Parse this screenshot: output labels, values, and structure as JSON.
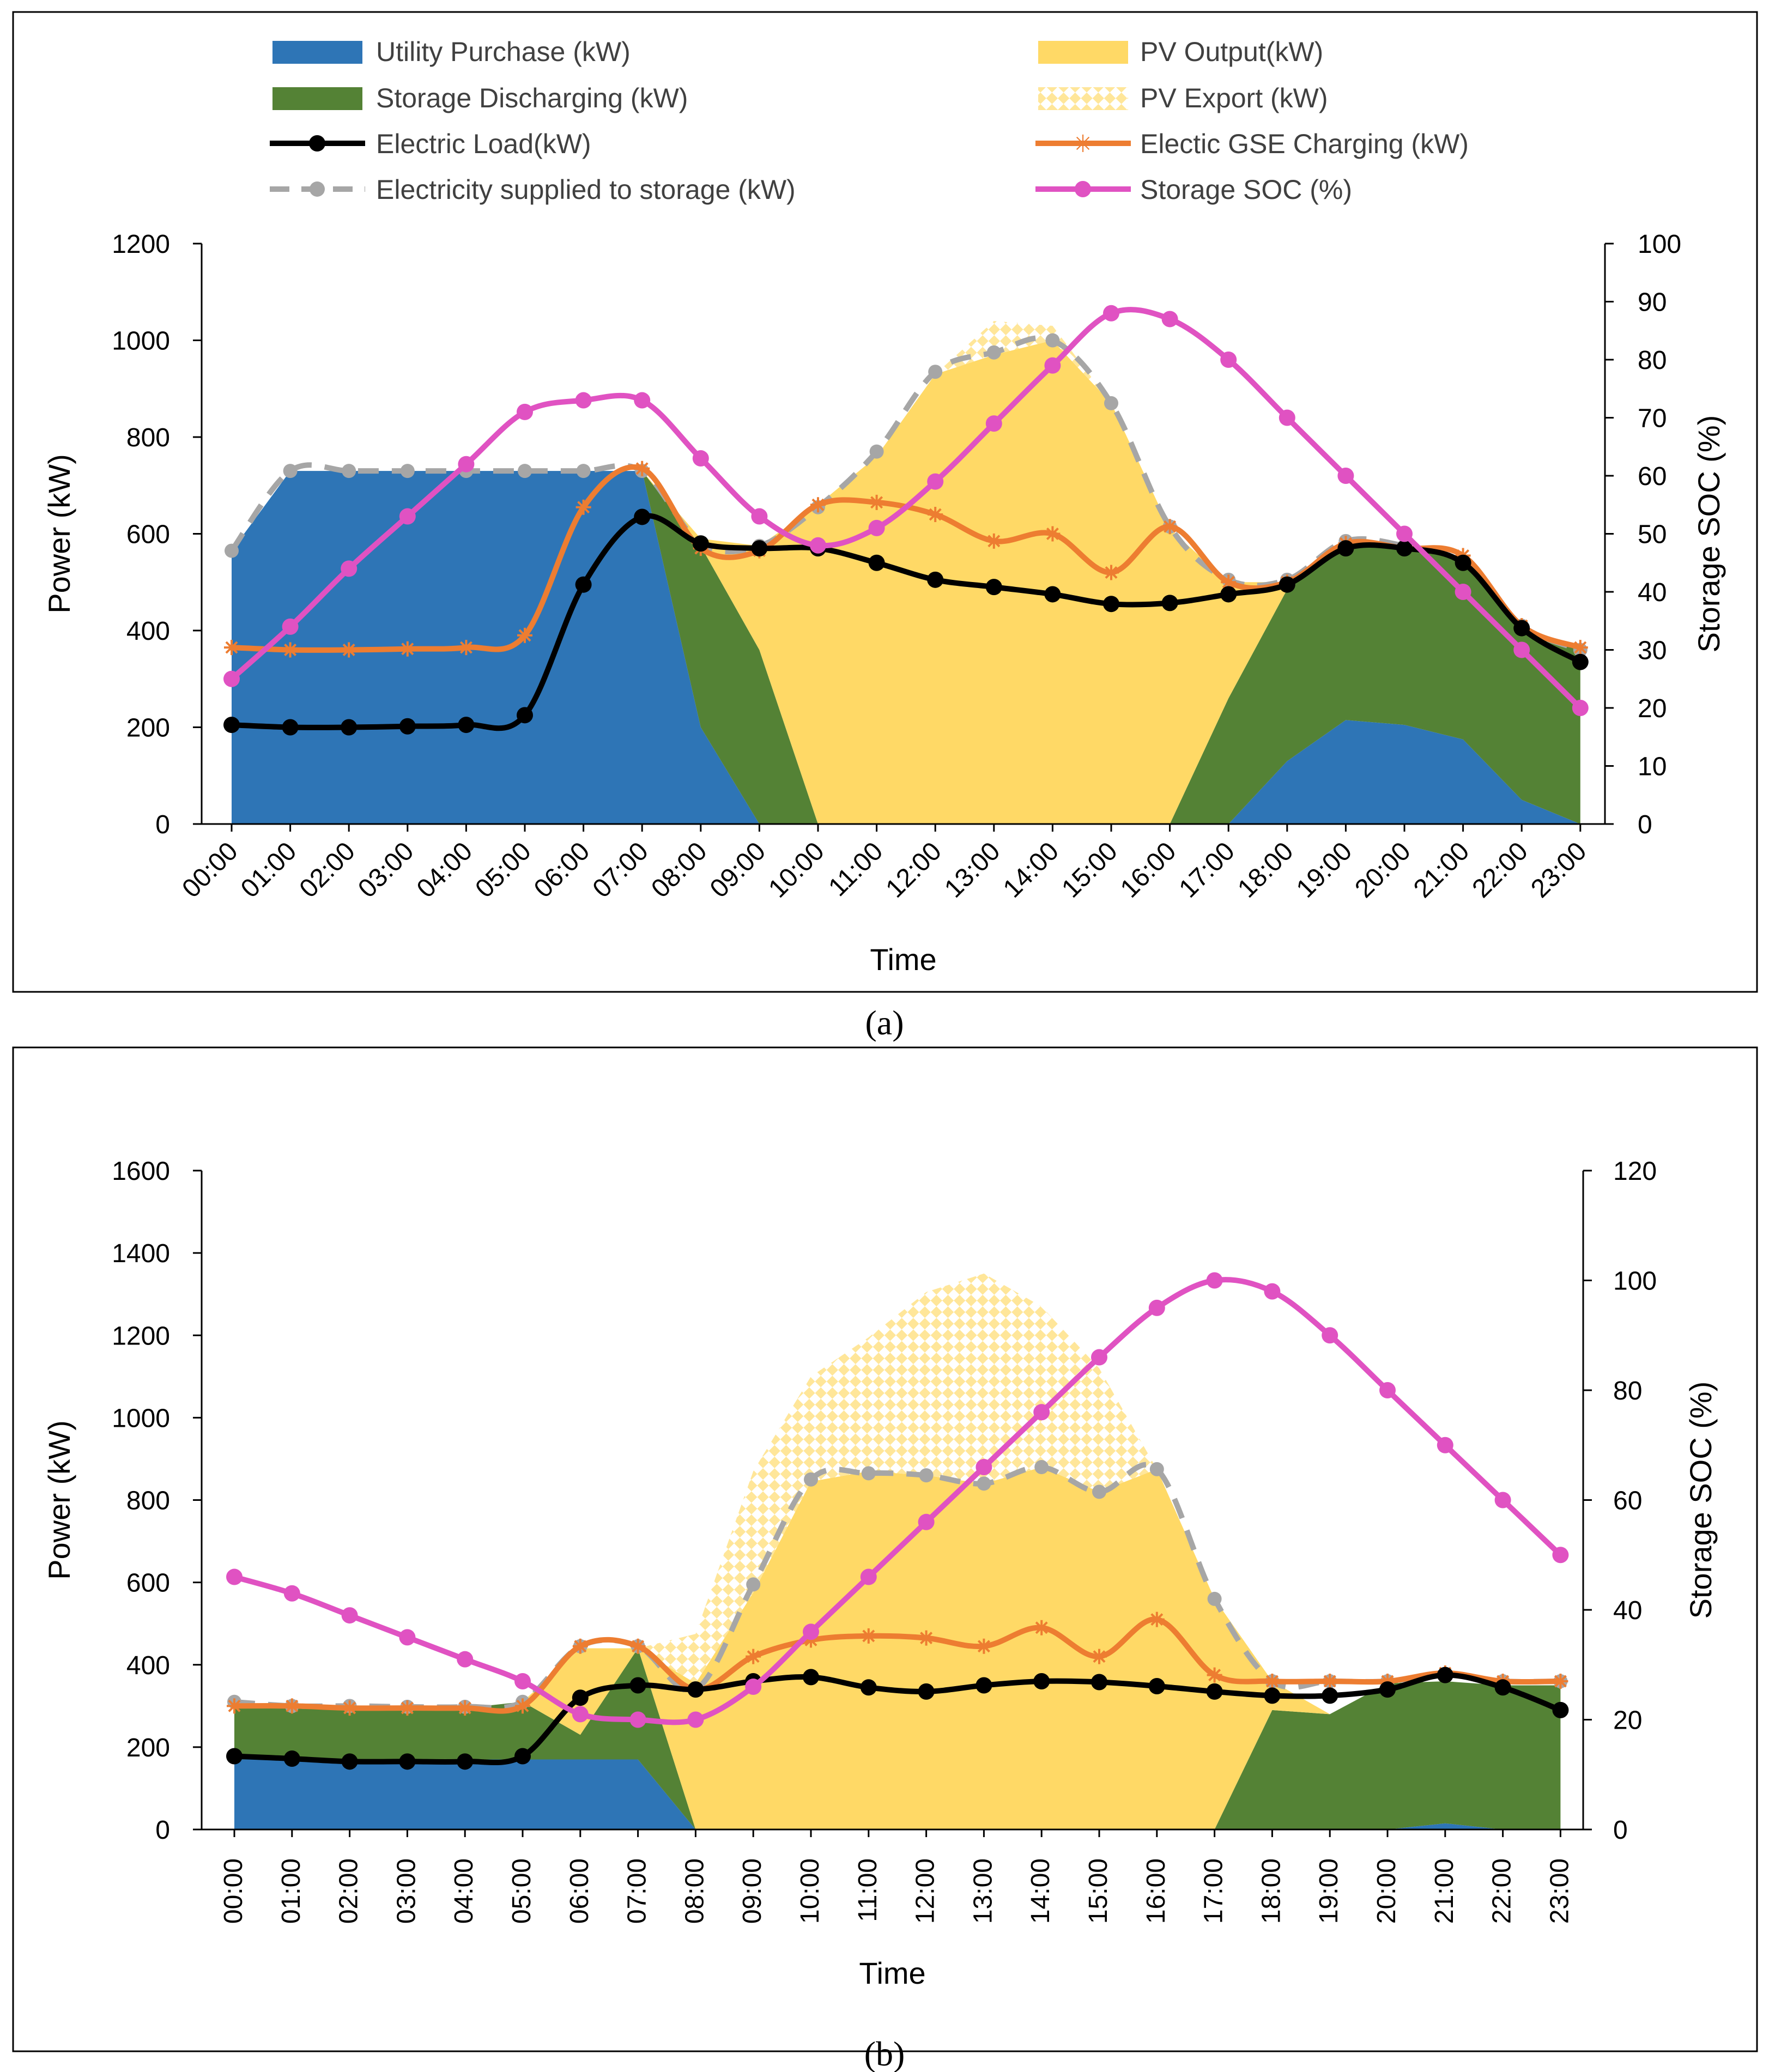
{
  "colors": {
    "utility": "#2E75B6",
    "storage_discharging": "#548235",
    "pv_output": "#FFD966",
    "pv_export_pattern": "#FFE699",
    "electric_load": "#000000",
    "gse_charging": "#ED7D31",
    "supplied_to_storage": "#A6A6A6",
    "soc": "#E052C2"
  },
  "chart_data": [
    {
      "type": "area",
      "caption": "(a)",
      "xlabel": "Time",
      "ylabel": "Power (kW)",
      "y2label": "Storage SOC (%)",
      "ylim": [
        0,
        1200
      ],
      "y_ticks": [
        0,
        200,
        400,
        600,
        800,
        1000,
        1200
      ],
      "y2lim": [
        0,
        100
      ],
      "y2_ticks": [
        0,
        10,
        20,
        30,
        40,
        50,
        60,
        70,
        80,
        90,
        100
      ],
      "legend_position": "top",
      "categories": [
        "00:00",
        "01:00",
        "02:00",
        "03:00",
        "04:00",
        "05:00",
        "06:00",
        "07:00",
        "08:00",
        "09:00",
        "10:00",
        "11:00",
        "12:00",
        "13:00",
        "14:00",
        "15:00",
        "16:00",
        "17:00",
        "18:00",
        "19:00",
        "20:00",
        "21:00",
        "22:00",
        "23:00"
      ],
      "series": [
        {
          "name": "Utility Purchase (kW)",
          "kind": "area",
          "values": [
            565,
            730,
            730,
            730,
            730,
            730,
            730,
            730,
            200,
            0,
            0,
            0,
            0,
            0,
            0,
            0,
            0,
            0,
            130,
            215,
            205,
            175,
            50,
            0
          ]
        },
        {
          "name": "Storage Discharging (kW)",
          "kind": "area",
          "values": [
            0,
            0,
            0,
            0,
            0,
            0,
            0,
            0,
            375,
            360,
            0,
            0,
            0,
            0,
            0,
            0,
            0,
            260,
            355,
            365,
            370,
            375,
            360,
            360
          ]
        },
        {
          "name": "PV Output(kW)",
          "kind": "area",
          "values": [
            0,
            0,
            0,
            0,
            0,
            0,
            0,
            0,
            15,
            215,
            660,
            760,
            930,
            970,
            1000,
            870,
            610,
            240,
            15,
            0,
            0,
            0,
            0,
            0
          ]
        },
        {
          "name": "PV Export (kW)",
          "kind": "area",
          "values": [
            0,
            0,
            0,
            0,
            0,
            0,
            0,
            0,
            0,
            0,
            0,
            0,
            0,
            70,
            30,
            0,
            0,
            0,
            0,
            0,
            0,
            0,
            0,
            0
          ]
        },
        {
          "name": "Electric Load(kW)",
          "kind": "line",
          "axis": "left",
          "values": [
            205,
            200,
            200,
            202,
            205,
            225,
            495,
            635,
            580,
            570,
            570,
            540,
            505,
            490,
            475,
            455,
            457,
            475,
            495,
            570,
            570,
            540,
            405,
            335
          ]
        },
        {
          "name": "Electic GSE Charging (kW)",
          "kind": "line",
          "axis": "left",
          "values": [
            365,
            360,
            360,
            362,
            365,
            390,
            655,
            735,
            570,
            565,
            660,
            665,
            640,
            585,
            600,
            520,
            615,
            500,
            500,
            580,
            570,
            555,
            410,
            365
          ]
        },
        {
          "name": "Electricity supplied to storage (kW)",
          "kind": "line",
          "axis": "left",
          "values": [
            565,
            730,
            730,
            730,
            730,
            730,
            730,
            730,
            580,
            575,
            655,
            770,
            935,
            975,
            1000,
            870,
            615,
            505,
            505,
            585,
            575,
            540,
            410,
            360
          ]
        },
        {
          "name": "Storage SOC (%)",
          "kind": "line",
          "axis": "right",
          "values": [
            25,
            34,
            44,
            53,
            62,
            71,
            73,
            73,
            63,
            53,
            48,
            51,
            59,
            69,
            79,
            88,
            87,
            80,
            70,
            60,
            50,
            40,
            30,
            20
          ]
        }
      ]
    },
    {
      "type": "area",
      "caption": "(b)",
      "xlabel": "Time",
      "ylabel": "Power (kW)",
      "y2label": "Storage SOC (%)",
      "ylim": [
        0,
        1600
      ],
      "y_ticks": [
        0,
        200,
        400,
        600,
        800,
        1000,
        1200,
        1400,
        1600
      ],
      "y2lim": [
        0,
        120
      ],
      "y2_ticks": [
        0,
        20,
        40,
        60,
        80,
        100,
        120
      ],
      "categories": [
        "00:00",
        "01:00",
        "02:00",
        "03:00",
        "04:00",
        "05:00",
        "06:00",
        "07:00",
        "08:00",
        "09:00",
        "10:00",
        "11:00",
        "12:00",
        "13:00",
        "14:00",
        "15:00",
        "16:00",
        "17:00",
        "18:00",
        "19:00",
        "20:00",
        "21:00",
        "22:00",
        "23:00"
      ],
      "series": [
        {
          "name": "Utility Purchase (kW)",
          "kind": "area",
          "values": [
            170,
            170,
            170,
            170,
            170,
            170,
            170,
            170,
            0,
            0,
            0,
            0,
            0,
            0,
            0,
            0,
            0,
            0,
            0,
            0,
            0,
            15,
            0,
            0
          ]
        },
        {
          "name": "Storage Discharging (kW)",
          "kind": "area",
          "values": [
            130,
            125,
            125,
            125,
            125,
            140,
            60,
            270,
            0,
            0,
            0,
            0,
            0,
            0,
            0,
            0,
            0,
            0,
            290,
            280,
            355,
            345,
            350,
            350
          ]
        },
        {
          "name": "PV Output(kW)",
          "kind": "area",
          "values": [
            0,
            0,
            0,
            0,
            0,
            0,
            210,
            0,
            355,
            575,
            845,
            870,
            860,
            840,
            880,
            820,
            875,
            560,
            70,
            0,
            0,
            0,
            0,
            0
          ]
        },
        {
          "name": "PV Export (kW)",
          "kind": "area",
          "values": [
            0,
            0,
            0,
            0,
            0,
            0,
            0,
            0,
            120,
            295,
            255,
            325,
            445,
            510,
            390,
            300,
            0,
            0,
            0,
            0,
            0,
            0,
            0,
            0
          ]
        },
        {
          "name": "Electric Load(kW)",
          "kind": "line",
          "axis": "left",
          "values": [
            178,
            172,
            165,
            165,
            165,
            178,
            320,
            350,
            340,
            360,
            370,
            345,
            335,
            350,
            360,
            358,
            348,
            335,
            325,
            325,
            340,
            375,
            345,
            290
          ]
        },
        {
          "name": "Electic GSE Charging (kW)",
          "kind": "line",
          "axis": "left",
          "values": [
            300,
            300,
            295,
            295,
            295,
            300,
            445,
            445,
            340,
            420,
            460,
            470,
            465,
            445,
            490,
            420,
            510,
            375,
            360,
            360,
            360,
            380,
            360,
            360
          ]
        },
        {
          "name": "Electricity supplied to storage (kW)",
          "kind": "line",
          "axis": "left",
          "values": [
            310,
            300,
            300,
            298,
            298,
            310,
            445,
            445,
            340,
            595,
            850,
            865,
            860,
            840,
            880,
            820,
            875,
            560,
            360,
            360,
            360,
            375,
            360,
            360
          ]
        },
        {
          "name": "Storage SOC (%)",
          "kind": "line",
          "axis": "right",
          "values": [
            46,
            43,
            39,
            35,
            31,
            27,
            21,
            20,
            20,
            26,
            36,
            46,
            56,
            66,
            76,
            86,
            95,
            100,
            98,
            90,
            80,
            70,
            60,
            50
          ]
        }
      ]
    }
  ]
}
